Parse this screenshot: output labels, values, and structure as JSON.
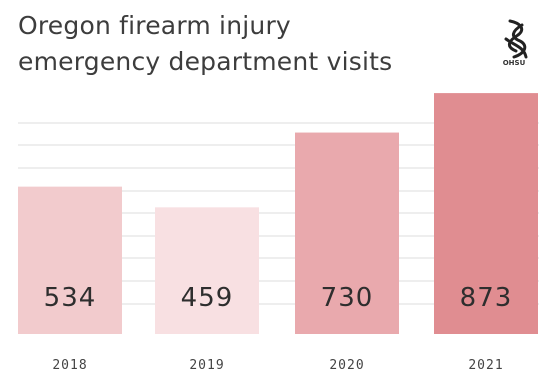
{
  "title_lines": [
    "Oregon firearm injury",
    "emergency department visits"
  ],
  "logo": {
    "icon": "ohsu-logo-icon",
    "text": "OHSU"
  },
  "chart_data": {
    "type": "bar",
    "title": "Oregon firearm injury emergency department visits",
    "categories": [
      "2018",
      "2019",
      "2020",
      "2021"
    ],
    "values": [
      534,
      459,
      730,
      873
    ],
    "data_labels": [
      "534",
      "459",
      "730",
      "873"
    ],
    "bar_colors": [
      "#f2cbcd",
      "#f8e0e2",
      "#e9a9ad",
      "#e08d91"
    ],
    "gridline_color": "#dddddd",
    "grid": true,
    "legend": "none",
    "ylim": [
      0,
      1000
    ]
  }
}
